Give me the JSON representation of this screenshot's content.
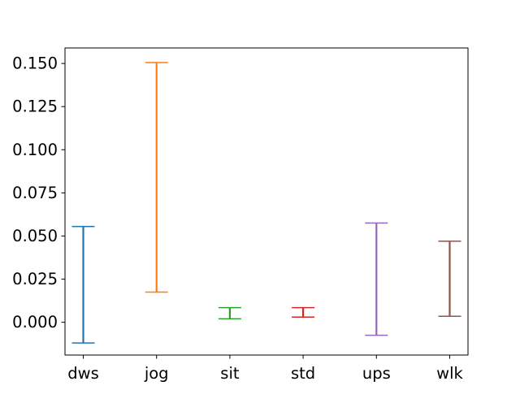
{
  "chart_data": {
    "type": "errorbar",
    "title": "",
    "xlabel": "",
    "ylabel": "",
    "categories": [
      "dws",
      "jog",
      "sit",
      "std",
      "ups",
      "wlk"
    ],
    "ranges": [
      {
        "low": -0.012,
        "high": 0.0555
      },
      {
        "low": 0.0175,
        "high": 0.1505
      },
      {
        "low": 0.002,
        "high": 0.0085
      },
      {
        "low": 0.003,
        "high": 0.0085
      },
      {
        "low": -0.0075,
        "high": 0.0575
      },
      {
        "low": 0.0035,
        "high": 0.047
      }
    ],
    "colors": [
      "#1f77b4",
      "#ff7f0e",
      "#2ca02c",
      "#d62728",
      "#9467bd",
      "#8c564b"
    ],
    "yticks": [
      "0.000",
      "0.025",
      "0.050",
      "0.075",
      "0.100",
      "0.125",
      "0.150"
    ],
    "ylim": [
      -0.019,
      0.159
    ],
    "grid": false,
    "legend": "none"
  }
}
